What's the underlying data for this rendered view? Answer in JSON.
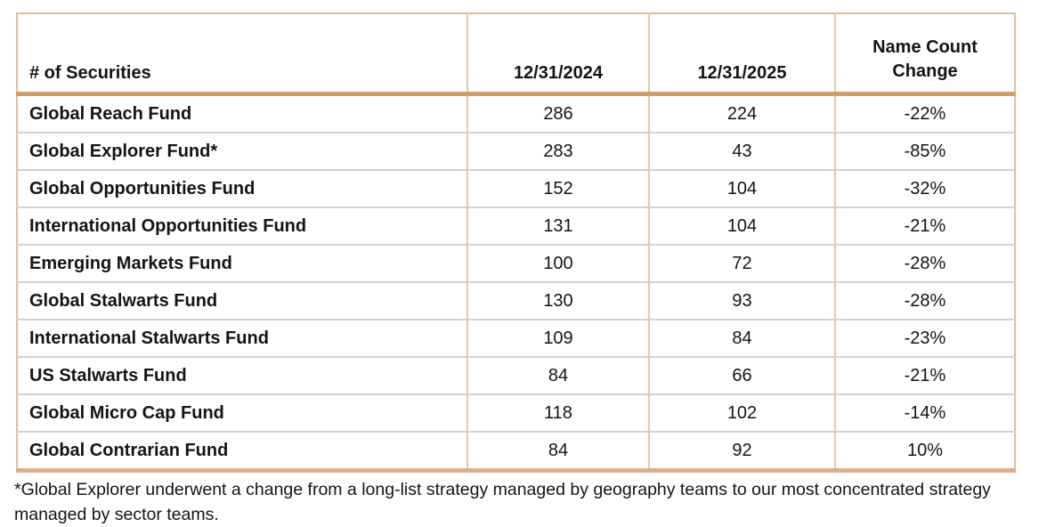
{
  "chart_data": {
    "type": "table",
    "title": "# of Securities",
    "columns": [
      "# of Securities",
      "12/31/2024",
      "12/31/2025",
      "Name Count Change"
    ],
    "rows": [
      {
        "fund": "Global Reach Fund",
        "securities_2024": 286,
        "securities_2025": 224,
        "name_count_change": "-22%"
      },
      {
        "fund": "Global Explorer Fund*",
        "securities_2024": 283,
        "securities_2025": 43,
        "name_count_change": "-85%"
      },
      {
        "fund": "Global Opportunities Fund",
        "securities_2024": 152,
        "securities_2025": 104,
        "name_count_change": "-32%"
      },
      {
        "fund": "International Opportunities Fund",
        "securities_2024": 131,
        "securities_2025": 104,
        "name_count_change": "-21%"
      },
      {
        "fund": "Emerging Markets Fund",
        "securities_2024": 100,
        "securities_2025": 72,
        "name_count_change": "-28%"
      },
      {
        "fund": "Global Stalwarts Fund",
        "securities_2024": 130,
        "securities_2025": 93,
        "name_count_change": "-28%"
      },
      {
        "fund": "International Stalwarts Fund",
        "securities_2024": 109,
        "securities_2025": 84,
        "name_count_change": "-23%"
      },
      {
        "fund": "US Stalwarts Fund",
        "securities_2024": 84,
        "securities_2025": 66,
        "name_count_change": "-21%"
      },
      {
        "fund": "Global Micro Cap Fund",
        "securities_2024": 118,
        "securities_2025": 102,
        "name_count_change": "-14%"
      },
      {
        "fund": "Global Contrarian Fund",
        "securities_2024": 84,
        "securities_2025": 92,
        "name_count_change": "10%"
      }
    ],
    "footnote": "*Global Explorer underwent a change from a long-list strategy managed by geography teams to our most concentrated strategy managed by sector teams."
  },
  "colors": {
    "header_underline": "#d19d6c",
    "table_bottom_border": "#d8b18c",
    "outer_border": "#dcbf9f",
    "row_separator": "#ddcfc1",
    "column_separator": "#e4c9ac",
    "text": "#141414",
    "background": "#ffffff"
  }
}
